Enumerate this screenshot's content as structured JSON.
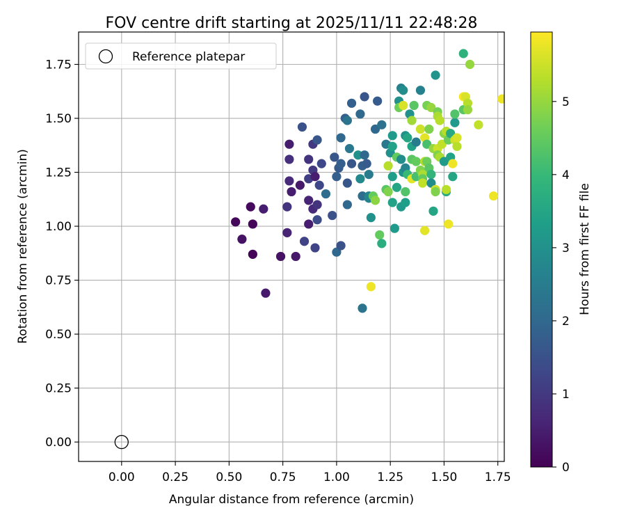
{
  "chart_data": {
    "type": "scatter",
    "title": "FOV centre drift starting at 2025/11/11 22:48:28",
    "xlabel": "Angular distance from reference (arcmin)",
    "ylabel": "Rotation from reference (arcmin)",
    "xlim": [
      -0.2,
      1.78
    ],
    "ylim": [
      -0.09,
      1.9
    ],
    "xticks": [
      "0.00",
      "0.25",
      "0.50",
      "0.75",
      "1.00",
      "1.25",
      "1.50",
      "1.75"
    ],
    "yticks": [
      "0.00",
      "0.25",
      "0.50",
      "0.75",
      "1.00",
      "1.25",
      "1.50",
      "1.75"
    ],
    "grid": true,
    "legend": {
      "position": "top-left",
      "label": "Reference platepar"
    },
    "reference_point": [
      0.0,
      0.0
    ],
    "colorbar": {
      "label": "Hours from first FF file",
      "range": [
        0,
        5.95
      ],
      "ticks": [
        "0",
        "1",
        "2",
        "3",
        "4",
        "5"
      ],
      "colormap": "viridis"
    },
    "points": [
      [
        0.53,
        1.02,
        0.1
      ],
      [
        0.6,
        1.09,
        0.15
      ],
      [
        0.56,
        0.94,
        0.3
      ],
      [
        0.61,
        1.01,
        0.1
      ],
      [
        0.61,
        0.87,
        0.05
      ],
      [
        0.66,
        1.08,
        0.5
      ],
      [
        0.67,
        0.69,
        0.4
      ],
      [
        0.74,
        0.86,
        0.3
      ],
      [
        0.78,
        1.38,
        0.5
      ],
      [
        0.78,
        1.31,
        0.8
      ],
      [
        0.78,
        1.21,
        0.7
      ],
      [
        0.79,
        1.16,
        0.5
      ],
      [
        0.77,
        1.09,
        0.9
      ],
      [
        0.77,
        0.97,
        0.6
      ],
      [
        0.81,
        0.86,
        0.4
      ],
      [
        0.83,
        1.19,
        0.4
      ],
      [
        0.84,
        1.46,
        1.5
      ],
      [
        0.87,
        1.31,
        0.9
      ],
      [
        0.87,
        1.22,
        1.1
      ],
      [
        0.87,
        1.12,
        0.6
      ],
      [
        0.87,
        1.01,
        0.5
      ],
      [
        0.85,
        0.93,
        1.2
      ],
      [
        0.89,
        1.38,
        1.0
      ],
      [
        0.91,
        1.4,
        1.6
      ],
      [
        0.89,
        1.26,
        1.0
      ],
      [
        0.9,
        1.23,
        0.5
      ],
      [
        0.89,
        1.08,
        0.7
      ],
      [
        0.91,
        1.1,
        0.9
      ],
      [
        0.9,
        0.9,
        1.2
      ],
      [
        0.92,
        1.19,
        1.3
      ],
      [
        0.93,
        1.29,
        1.3
      ],
      [
        0.91,
        1.03,
        1.4
      ],
      [
        0.95,
        1.15,
        2.1
      ],
      [
        0.98,
        1.05,
        1.5
      ],
      [
        0.99,
        1.32,
        1.6
      ],
      [
        1.0,
        1.23,
        1.8
      ],
      [
        1.0,
        0.88,
        2.0
      ],
      [
        1.02,
        0.91,
        1.5
      ],
      [
        1.01,
        1.27,
        1.7
      ],
      [
        1.02,
        1.29,
        1.8
      ],
      [
        1.02,
        1.41,
        2.0
      ],
      [
        1.04,
        1.5,
        1.8
      ],
      [
        1.05,
        1.49,
        2.3
      ],
      [
        1.06,
        1.36,
        2.4
      ],
      [
        1.05,
        1.2,
        1.6
      ],
      [
        1.05,
        1.1,
        2.0
      ],
      [
        1.07,
        1.57,
        1.8
      ],
      [
        1.07,
        1.29,
        1.6
      ],
      [
        1.1,
        1.33,
        3.0
      ],
      [
        1.11,
        1.22,
        2.8
      ],
      [
        1.11,
        1.52,
        2.0
      ],
      [
        1.12,
        1.14,
        2.1
      ],
      [
        1.12,
        1.28,
        1.8
      ],
      [
        1.12,
        0.62,
        2.3
      ],
      [
        1.13,
        1.6,
        1.6
      ],
      [
        1.14,
        1.29,
        1.7
      ],
      [
        1.13,
        1.33,
        2.0
      ],
      [
        1.15,
        1.24,
        2.5
      ],
      [
        1.15,
        1.13,
        2.6
      ],
      [
        1.15,
        1.14,
        2.7
      ],
      [
        1.16,
        1.04,
        3.0
      ],
      [
        1.18,
        1.45,
        2.0
      ],
      [
        1.19,
        1.58,
        1.7
      ],
      [
        1.17,
        1.14,
        4.5
      ],
      [
        1.18,
        1.12,
        4.9
      ],
      [
        1.2,
        0.96,
        4.5
      ],
      [
        1.21,
        0.92,
        3.7
      ],
      [
        1.21,
        1.47,
        2.2
      ],
      [
        1.23,
        1.38,
        2.4
      ],
      [
        1.23,
        1.17,
        4.4
      ],
      [
        1.24,
        1.28,
        5.3
      ],
      [
        1.24,
        1.16,
        4.8
      ],
      [
        1.16,
        0.72,
        5.8
      ],
      [
        1.25,
        1.34,
        3.0
      ],
      [
        1.26,
        1.42,
        3.2
      ],
      [
        1.26,
        1.37,
        3.4
      ],
      [
        1.26,
        1.23,
        3.3
      ],
      [
        1.26,
        1.11,
        3.4
      ],
      [
        1.27,
        0.99,
        3.2
      ],
      [
        1.28,
        1.32,
        4.5
      ],
      [
        1.28,
        1.18,
        3.5
      ],
      [
        1.29,
        1.58,
        3.0
      ],
      [
        1.29,
        1.55,
        4.6
      ],
      [
        1.3,
        1.64,
        2.6
      ],
      [
        1.3,
        1.31,
        2.9
      ],
      [
        1.31,
        1.25,
        3.0
      ],
      [
        1.3,
        1.09,
        3.2
      ],
      [
        1.31,
        1.56,
        5.6
      ],
      [
        1.31,
        1.63,
        2.9
      ],
      [
        1.32,
        1.42,
        3.0
      ],
      [
        1.32,
        1.27,
        2.7
      ],
      [
        1.32,
        1.16,
        4.3
      ],
      [
        1.32,
        1.11,
        3.3
      ],
      [
        1.33,
        1.41,
        3.5
      ],
      [
        1.33,
        1.24,
        4.0
      ],
      [
        1.34,
        1.52,
        3.0
      ],
      [
        1.35,
        1.49,
        5.1
      ],
      [
        1.35,
        1.37,
        3.4
      ],
      [
        1.35,
        1.31,
        4.4
      ],
      [
        1.35,
        1.22,
        5.7
      ],
      [
        1.36,
        1.56,
        4.4
      ],
      [
        1.37,
        1.39,
        2.5
      ],
      [
        1.37,
        1.3,
        4.5
      ],
      [
        1.37,
        1.23,
        4.2
      ],
      [
        1.39,
        1.63,
        2.6
      ],
      [
        1.39,
        1.45,
        5.5
      ],
      [
        1.39,
        1.26,
        4.8
      ],
      [
        1.4,
        1.24,
        5.2
      ],
      [
        1.4,
        1.22,
        4.5
      ],
      [
        1.4,
        1.2,
        5.4
      ],
      [
        1.41,
        1.41,
        5.7
      ],
      [
        1.41,
        1.3,
        5.3
      ],
      [
        1.41,
        0.98,
        5.7
      ],
      [
        1.42,
        1.56,
        4.7
      ],
      [
        1.42,
        1.38,
        4.2
      ],
      [
        1.42,
        1.3,
        4.6
      ],
      [
        1.43,
        1.45,
        4.8
      ],
      [
        1.43,
        1.27,
        4.4
      ],
      [
        1.44,
        1.24,
        3.9
      ],
      [
        1.44,
        1.2,
        2.9
      ],
      [
        1.44,
        1.55,
        5.0
      ],
      [
        1.45,
        1.36,
        5.0
      ],
      [
        1.45,
        1.07,
        3.5
      ],
      [
        1.46,
        1.7,
        3.1
      ],
      [
        1.46,
        1.17,
        5.5
      ],
      [
        1.46,
        1.16,
        4.8
      ],
      [
        1.47,
        1.53,
        4.7
      ],
      [
        1.47,
        1.51,
        5.2
      ],
      [
        1.47,
        1.36,
        5.5
      ],
      [
        1.47,
        1.33,
        4.8
      ],
      [
        1.48,
        1.49,
        5.3
      ],
      [
        1.48,
        1.32,
        5.2
      ],
      [
        1.49,
        1.38,
        5.4
      ],
      [
        1.5,
        1.43,
        4.9
      ],
      [
        1.5,
        1.3,
        3.2
      ],
      [
        1.51,
        1.44,
        5.3
      ],
      [
        1.51,
        1.16,
        3.6
      ],
      [
        1.51,
        1.17,
        5.3
      ],
      [
        1.52,
        1.4,
        4.6
      ],
      [
        1.52,
        1.01,
        5.8
      ],
      [
        1.53,
        1.43,
        3.6
      ],
      [
        1.53,
        1.32,
        3.4
      ],
      [
        1.54,
        1.29,
        5.8
      ],
      [
        1.54,
        1.23,
        3.5
      ],
      [
        1.55,
        1.48,
        3.2
      ],
      [
        1.55,
        1.52,
        4.3
      ],
      [
        1.55,
        1.4,
        5.5
      ],
      [
        1.56,
        1.37,
        5.3
      ],
      [
        1.56,
        1.41,
        5.6
      ],
      [
        1.59,
        1.8,
        3.8
      ],
      [
        1.59,
        1.54,
        4.4
      ],
      [
        1.59,
        1.6,
        5.9
      ],
      [
        1.6,
        1.6,
        5.6
      ],
      [
        1.61,
        1.57,
        5.3
      ],
      [
        1.61,
        1.54,
        5.0
      ],
      [
        1.62,
        1.75,
        5.0
      ],
      [
        1.66,
        1.47,
        5.4
      ],
      [
        1.73,
        1.14,
        5.8
      ],
      [
        1.77,
        1.59,
        5.8
      ]
    ]
  }
}
